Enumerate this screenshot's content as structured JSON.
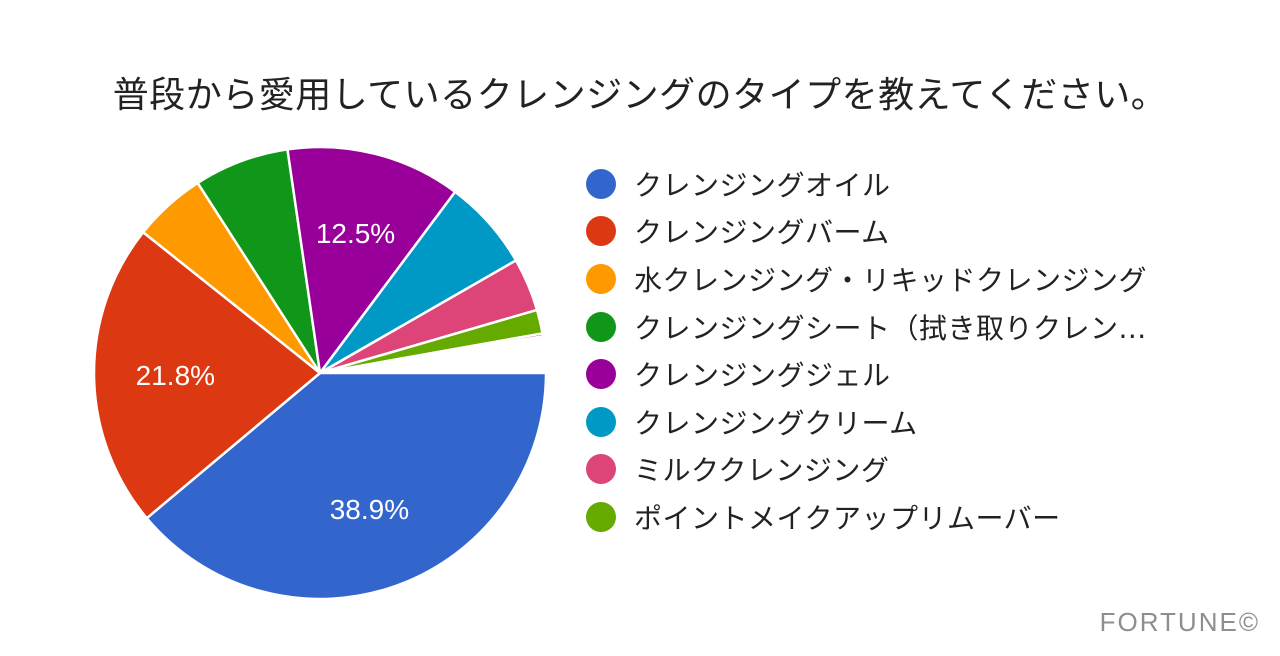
{
  "title": "普段から愛用しているクレンジングのタイプを教えてください。",
  "watermark": "FORTUNE©",
  "chart_data": {
    "type": "pie",
    "title": "普段から愛用しているクレンジングのタイプを教えてください。",
    "legend_position": "right",
    "start_angle_deg": 0,
    "direction": "clockwise",
    "categories": [
      "クレンジングオイル",
      "クレンジングバーム",
      "水クレンジング・リキッドクレンジング",
      "クレンジングシート（拭き取りクレン...",
      "クレンジングジェル",
      "クレンジングクリーム",
      "ミルククレンジング",
      "ポイントメイクアップリムーバー"
    ],
    "values": [
      38.9,
      21.8,
      5.2,
      6.8,
      12.5,
      6.5,
      3.8,
      1.7,
      0.2,
      2.6
    ],
    "value_notes": "Percentages; 38.9, 21.8, 12.5 are labeled on chart; others estimated from slice angles. Last two values are an unlabeled thin red sliver and a white/blank gap.",
    "colors": [
      "#3366CC",
      "#DC3912",
      "#FF9900",
      "#109618",
      "#990099",
      "#0099C6",
      "#DD4477",
      "#66AA00",
      "#B82E2E",
      "#FFFFFF"
    ],
    "labels_on_slices": [
      "38.9%",
      "21.8%",
      "",
      "",
      "12.5%",
      "",
      "",
      "",
      "",
      ""
    ]
  },
  "legend": [
    {
      "label": "クレンジングオイル",
      "color": "#3366CC"
    },
    {
      "label": "クレンジングバーム",
      "color": "#DC3912"
    },
    {
      "label": "水クレンジング・リキッドクレンジング",
      "color": "#FF9900"
    },
    {
      "label": "クレンジングシート（拭き取りクレン...",
      "color": "#109618"
    },
    {
      "label": "クレンジングジェル",
      "color": "#990099"
    },
    {
      "label": "クレンジングクリーム",
      "color": "#0099C6"
    },
    {
      "label": "ミルククレンジング",
      "color": "#DD4477"
    },
    {
      "label": "ポイントメイクアップリムーバー",
      "color": "#66AA00"
    }
  ]
}
